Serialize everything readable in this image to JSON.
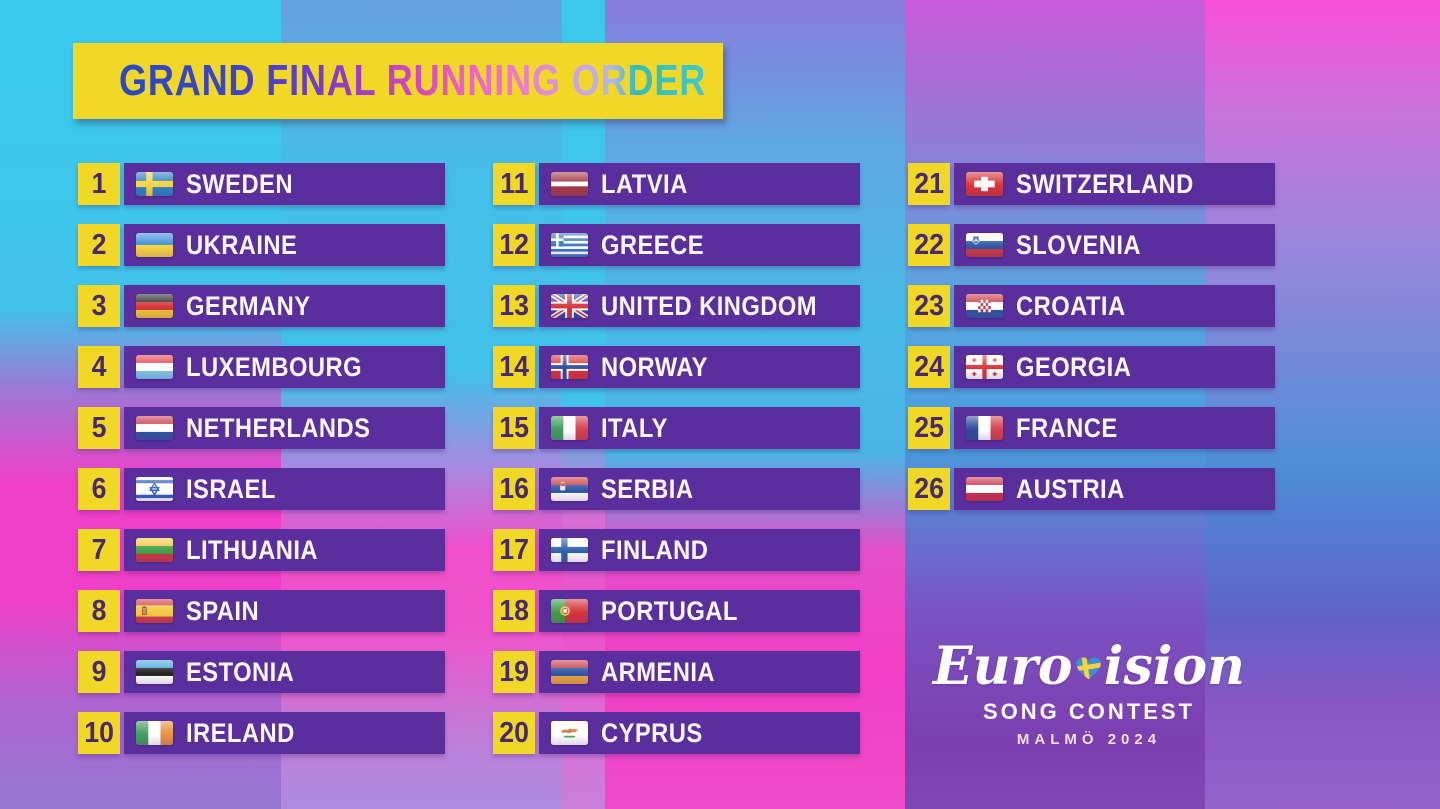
{
  "title": {
    "text": "GRAND FINAL RUNNING ORDER"
  },
  "banner_color": "#F1D827",
  "bar_color": "#5A2E9C",
  "number_color": "#472A6B",
  "entries": [
    {
      "n": 1,
      "country": "SWEDEN",
      "flag": {
        "kind": "nordic",
        "c": [
          "#2E7FC4",
          "#F6D23E"
        ]
      }
    },
    {
      "n": 2,
      "country": "UKRAINE",
      "flag": {
        "kind": "h",
        "c": [
          "#3B8ED8",
          "#F5D23F"
        ]
      }
    },
    {
      "n": 3,
      "country": "GERMANY",
      "flag": {
        "kind": "h",
        "c": [
          "#262626",
          "#D5343A",
          "#F2C434"
        ]
      }
    },
    {
      "n": 4,
      "country": "LUXEMBOURG",
      "flag": {
        "kind": "h",
        "c": [
          "#E4434C",
          "#FFFFFF",
          "#7FC5E9"
        ]
      }
    },
    {
      "n": 5,
      "country": "NETHERLANDS",
      "flag": {
        "kind": "h",
        "c": [
          "#C93A4C",
          "#FFFFFF",
          "#2F55A4"
        ]
      }
    },
    {
      "n": 6,
      "country": "ISRAEL",
      "flag": {
        "kind": "israel",
        "c": [
          "#FFFFFF",
          "#2E5FB7"
        ]
      }
    },
    {
      "n": 7,
      "country": "LITHUANIA",
      "flag": {
        "kind": "h",
        "c": [
          "#F2C83E",
          "#3F9C46",
          "#C93A44"
        ]
      }
    },
    {
      "n": 8,
      "country": "SPAIN",
      "flag": {
        "kind": "spain",
        "c": [
          "#D03A44",
          "#F2C83E"
        ]
      }
    },
    {
      "n": 9,
      "country": "ESTONIA",
      "flag": {
        "kind": "h",
        "c": [
          "#47A5E0",
          "#222222",
          "#FFFFFF"
        ]
      }
    },
    {
      "n": 10,
      "country": "IRELAND",
      "flag": {
        "kind": "v",
        "c": [
          "#3F9C5B",
          "#FFFFFF",
          "#E8913F"
        ]
      }
    },
    {
      "n": 11,
      "country": "LATVIA",
      "flag": {
        "kind": "h",
        "c": [
          "#A23A44",
          "#FFFFFF",
          "#A23A44"
        ],
        "w": [
          10,
          5,
          10
        ]
      }
    },
    {
      "n": 12,
      "country": "GREECE",
      "flag": {
        "kind": "greece",
        "c": [
          "#3573C8",
          "#FFFFFF"
        ]
      }
    },
    {
      "n": 13,
      "country": "UNITED KINGDOM",
      "flag": {
        "kind": "uk",
        "c": [
          "#2E4A9E",
          "#FFFFFF",
          "#D5343A"
        ]
      }
    },
    {
      "n": 14,
      "country": "NORWAY",
      "flag": {
        "kind": "nordic2",
        "c": [
          "#D5343A",
          "#FFFFFF",
          "#2E4A9E"
        ]
      }
    },
    {
      "n": 15,
      "country": "ITALY",
      "flag": {
        "kind": "v",
        "c": [
          "#3F9C5B",
          "#FFFFFF",
          "#D5404A"
        ]
      }
    },
    {
      "n": 16,
      "country": "SERBIA",
      "flag": {
        "kind": "serbia",
        "c": [
          "#C53A44",
          "#2E55A4",
          "#FFFFFF"
        ]
      }
    },
    {
      "n": 17,
      "country": "FINLAND",
      "flag": {
        "kind": "nordic",
        "c": [
          "#FFFFFF",
          "#2E5FA8"
        ]
      }
    },
    {
      "n": 18,
      "country": "PORTUGAL",
      "flag": {
        "kind": "portugal",
        "c": [
          "#3F9C46",
          "#D5343A",
          "#F2C83E"
        ]
      }
    },
    {
      "n": 19,
      "country": "ARMENIA",
      "flag": {
        "kind": "h",
        "c": [
          "#C53A44",
          "#2E55A4",
          "#E8A53F"
        ]
      }
    },
    {
      "n": 20,
      "country": "CYPRUS",
      "flag": {
        "kind": "cyprus",
        "c": [
          "#FFFFFF",
          "#C8763F",
          "#3F9C46"
        ]
      }
    },
    {
      "n": 21,
      "country": "SWITZERLAND",
      "flag": {
        "kind": "swiss",
        "c": [
          "#D5343A",
          "#FFFFFF"
        ]
      }
    },
    {
      "n": 22,
      "country": "SLOVENIA",
      "flag": {
        "kind": "slovenia",
        "c": [
          "#FFFFFF",
          "#2E55A4",
          "#C53A44"
        ]
      }
    },
    {
      "n": 23,
      "country": "CROATIA",
      "flag": {
        "kind": "croatia",
        "c": [
          "#C53A44",
          "#FFFFFF",
          "#2E55A4"
        ]
      }
    },
    {
      "n": 24,
      "country": "GEORGIA",
      "flag": {
        "kind": "georgia",
        "c": [
          "#FFFFFF",
          "#D5343A"
        ]
      }
    },
    {
      "n": 25,
      "country": "FRANCE",
      "flag": {
        "kind": "v",
        "c": [
          "#2E4A9E",
          "#FFFFFF",
          "#D5404A"
        ]
      }
    },
    {
      "n": 26,
      "country": "AUSTRIA",
      "flag": {
        "kind": "h",
        "c": [
          "#C8314B",
          "#FFFFFF",
          "#C8314B"
        ]
      }
    }
  ],
  "logo": {
    "pre": "Euro",
    "post": "ision",
    "heart_colors": {
      "bg": "#3E8ED2",
      "cross": "#F6D23E"
    },
    "line2": "SONG CONTEST",
    "line3": "MALMÖ 2024"
  }
}
